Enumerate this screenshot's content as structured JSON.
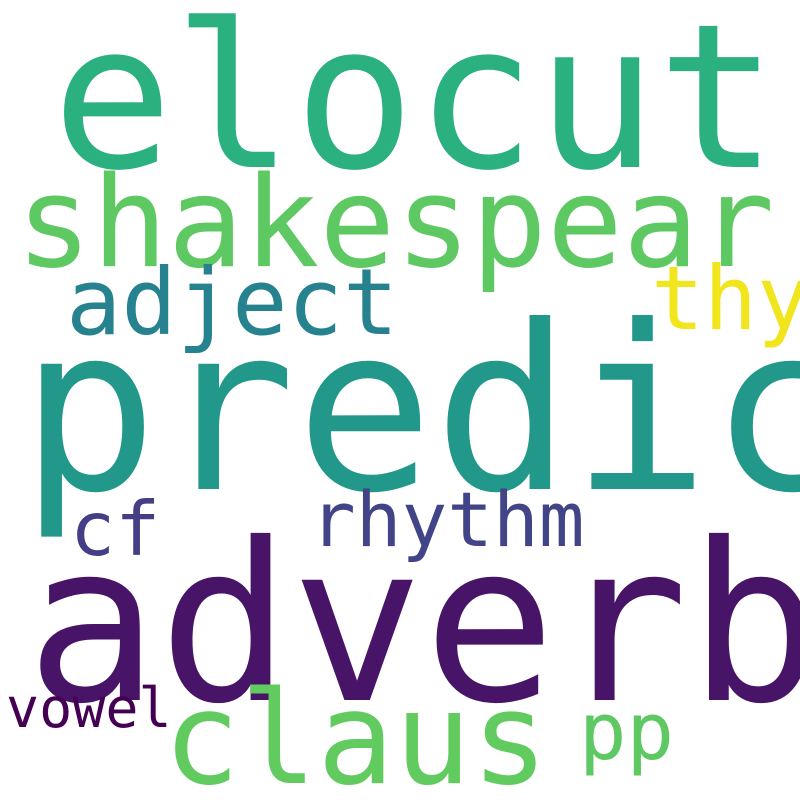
{
  "words": [
    {
      "text": "elocut",
      "color": "#2bb07f"
    },
    {
      "text": "shakespear",
      "color": "#5ec962"
    },
    {
      "text": "adject",
      "color": "#26828e"
    },
    {
      "text": "thy",
      "color": "#f1e51d"
    },
    {
      "text": "predic",
      "color": "#21988a"
    },
    {
      "text": "cf",
      "color": "#433e85"
    },
    {
      "text": "rhythm",
      "color": "#414487"
    },
    {
      "text": "adverb",
      "color": "#481467"
    },
    {
      "text": "claus",
      "color": "#62cb5f"
    },
    {
      "text": "pp",
      "color": "#5ec962"
    },
    {
      "text": "vowel",
      "color": "#440154"
    }
  ]
}
